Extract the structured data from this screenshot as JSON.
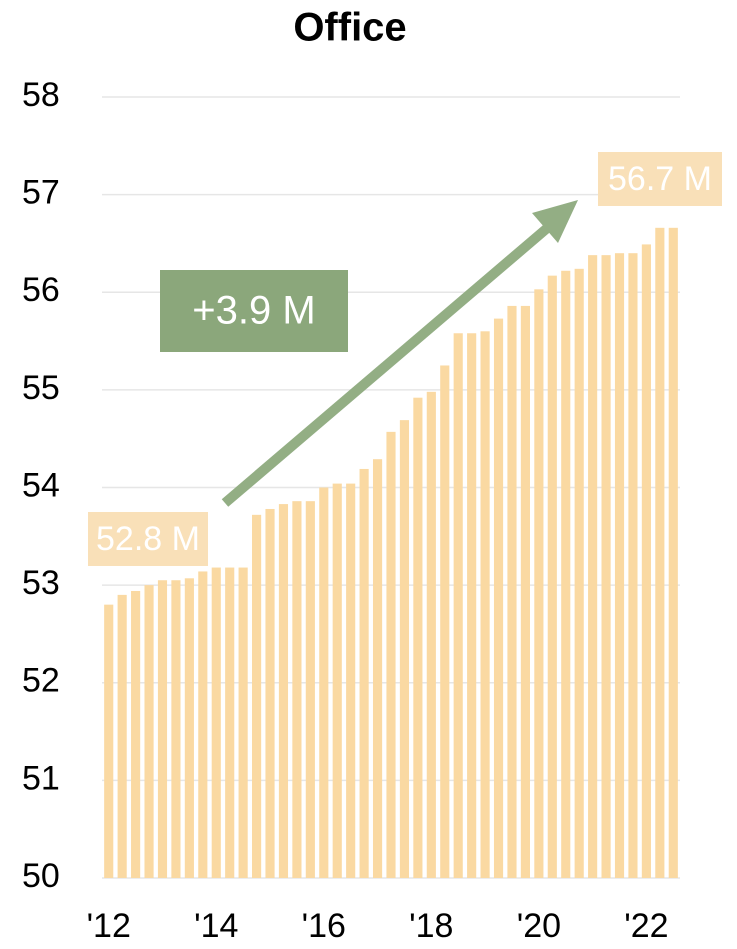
{
  "chart_data": {
    "type": "bar",
    "title": "Office",
    "categories": [
      "'12",
      null,
      null,
      null,
      null,
      null,
      null,
      null,
      "'14",
      null,
      null,
      null,
      null,
      null,
      null,
      null,
      "'16",
      null,
      null,
      null,
      null,
      null,
      null,
      null,
      "'18",
      null,
      null,
      null,
      null,
      null,
      null,
      null,
      "'20",
      null,
      null,
      null,
      null,
      null,
      null,
      null,
      "'22",
      null,
      null
    ],
    "values": [
      52.8,
      52.9,
      52.94,
      53.0,
      53.05,
      53.05,
      53.07,
      53.14,
      53.18,
      53.18,
      53.18,
      53.72,
      53.78,
      53.83,
      53.86,
      53.86,
      54.0,
      54.04,
      54.04,
      54.19,
      54.29,
      54.57,
      54.69,
      54.92,
      54.98,
      55.25,
      55.58,
      55.58,
      55.6,
      55.73,
      55.86,
      55.86,
      56.03,
      56.17,
      56.22,
      56.24,
      56.38,
      56.38,
      56.4,
      56.4,
      56.49,
      56.66,
      56.66
    ],
    "color": "#fad9a2",
    "ylim": [
      50,
      58
    ],
    "yticks": [
      50,
      51,
      52,
      53,
      54,
      55,
      56,
      57,
      58
    ],
    "grid": true,
    "annotations": [
      "52.8 M",
      "56.7 M",
      "+3.9 M"
    ]
  }
}
